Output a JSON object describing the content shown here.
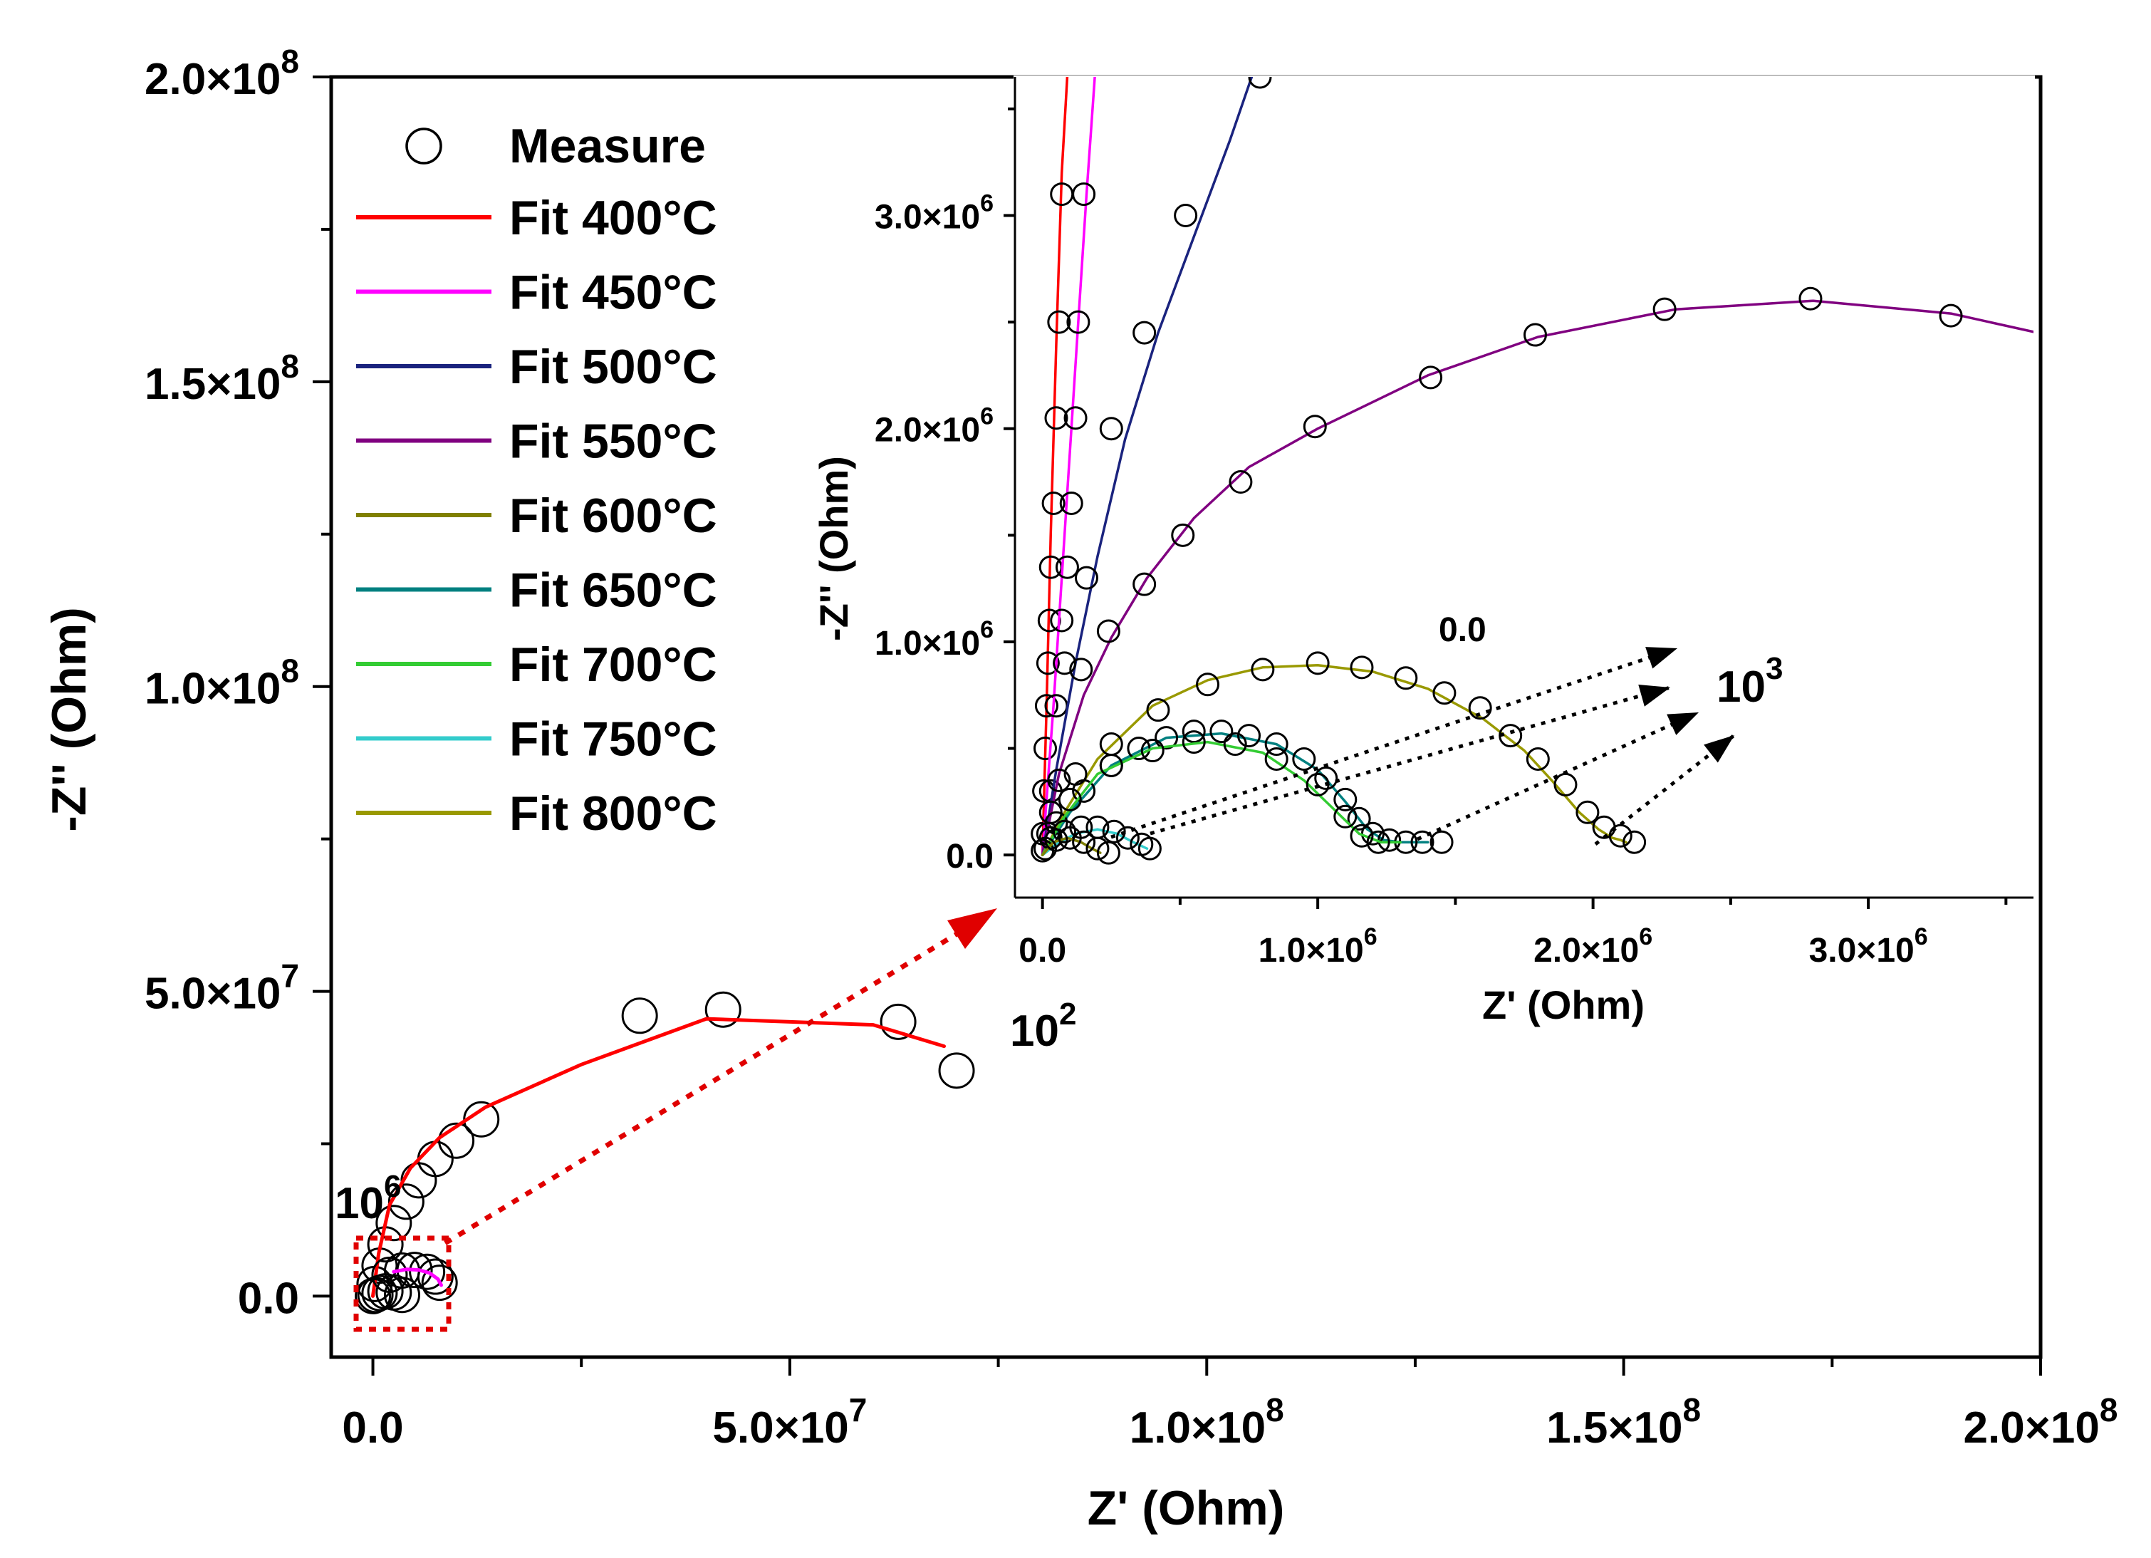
{
  "chart_data": [
    {
      "type": "scatter",
      "name": "main",
      "xlabel": "Z' (Ohm)",
      "ylabel": "-Z'' (Ohm)",
      "xlim": [
        -5000000,
        200000000
      ],
      "ylim": [
        -10000000,
        200000000
      ],
      "xticks": [
        0,
        50000000,
        100000000,
        150000000,
        200000000
      ],
      "yticks": [
        0,
        50000000,
        100000000,
        150000000,
        200000000
      ],
      "xtick_labels": [
        {
          "m": "0.0",
          "e": ""
        },
        {
          "m": "5.0×10",
          "e": "7"
        },
        {
          "m": "1.0×10",
          "e": "8"
        },
        {
          "m": "1.5×10",
          "e": "8"
        },
        {
          "m": "2.0×10",
          "e": "8"
        }
      ],
      "ytick_labels": [
        {
          "m": "0.0",
          "e": ""
        },
        {
          "m": "5.0×10",
          "e": "7"
        },
        {
          "m": "1.0×10",
          "e": "8"
        },
        {
          "m": "1.5×10",
          "e": "8"
        },
        {
          "m": "2.0×10",
          "e": "8"
        }
      ],
      "legend": {
        "position": "top-left",
        "measure_label": "Measure",
        "entries": [
          {
            "label": "Fit 400°C",
            "color": "#ff0000"
          },
          {
            "label": "Fit 450°C",
            "color": "#ff00ff"
          },
          {
            "label": "Fit 500°C",
            "color": "#1a237e"
          },
          {
            "label": "Fit 550°C",
            "color": "#800080"
          },
          {
            "label": "Fit 600°C",
            "color": "#808000"
          },
          {
            "label": "Fit 650°C",
            "color": "#008080"
          },
          {
            "label": "Fit 700°C",
            "color": "#33cc33"
          },
          {
            "label": "Fit 750°C",
            "color": "#33cccc"
          },
          {
            "label": "Fit 800°C",
            "color": "#999900"
          }
        ]
      },
      "series": [
        {
          "name": "Measure 400°C",
          "kind": "measure",
          "x": [
            200000,
            800000,
            1500000,
            2500000,
            4000000,
            5500000,
            7500000,
            10000000,
            13000000,
            32000000,
            42000000,
            63000000,
            70000000
          ],
          "y": [
            2000000,
            5000000,
            8500000,
            12000000,
            15500000,
            19000000,
            22500000,
            25500000,
            29000000,
            46000000,
            47000000,
            45000000,
            37000000
          ]
        },
        {
          "name": "Fit 400°C",
          "kind": "fit",
          "color": "#ff0000",
          "x": [
            0,
            700000,
            2000000,
            4500000,
            8000000,
            13500000,
            25000000,
            40000000,
            60000000,
            68500000
          ],
          "y": [
            0,
            7000000,
            15000000,
            21000000,
            26000000,
            31000000,
            38000000,
            45500000,
            44500000,
            41000000
          ]
        },
        {
          "name": "Measure 450°C",
          "kind": "measure",
          "x": [
            2000000,
            3500000,
            5000000,
            6500000,
            7500000,
            8000000
          ],
          "y": [
            3500000,
            4200000,
            4300000,
            4000000,
            3200000,
            2200000
          ]
        },
        {
          "name": "Fit 450°C",
          "kind": "fit",
          "color": "#ff00ff",
          "x": [
            2500000,
            4000000,
            5500000,
            6800000,
            7800000,
            8200000
          ],
          "y": [
            4000000,
            4400000,
            4300000,
            3800000,
            2800000,
            1800000
          ]
        },
        {
          "name": "Measure low-impedance",
          "kind": "measure",
          "x": [
            0,
            300000,
            800000,
            1500000,
            2500000,
            3500000
          ],
          "y": [
            0,
            200000,
            500000,
            800000,
            600000,
            200000
          ]
        }
      ],
      "annotations": [
        {
          "text": "10",
          "sup": "6",
          "at": "low-frequency start"
        },
        {
          "text": "10",
          "sup": "2",
          "at": "high end of 400°C arc"
        }
      ]
    },
    {
      "type": "scatter",
      "name": "inset",
      "xlabel": "Z' (Ohm)",
      "ylabel": "-Z'' (Ohm)",
      "xlim": [
        -100000,
        3600000
      ],
      "ylim": [
        -200000,
        3650000
      ],
      "xticks": [
        0,
        1000000,
        2000000,
        3000000
      ],
      "yticks": [
        0,
        1000000,
        2000000,
        3000000
      ],
      "xtick_labels": [
        {
          "m": "0.0",
          "e": ""
        },
        {
          "m": "1.0×10",
          "e": "6"
        },
        {
          "m": "2.0×10",
          "e": "6"
        },
        {
          "m": "3.0×10",
          "e": "6"
        }
      ],
      "ytick_labels": [
        {
          "m": "0.0",
          "e": ""
        },
        {
          "m": "1.0×10",
          "e": "6"
        },
        {
          "m": "2.0×10",
          "e": "6"
        },
        {
          "m": "3.0×10",
          "e": "6"
        }
      ],
      "series": [
        {
          "name": "Fit 400°C",
          "kind": "fit",
          "color": "#ff0000",
          "x": [
            0,
            15000,
            30000,
            50000,
            70000,
            90000
          ],
          "y": [
            0,
            700000,
            1500000,
            2400000,
            3200000,
            3650000
          ]
        },
        {
          "name": "Measure 400°C",
          "kind": "measure",
          "x": [
            0,
            5000,
            10000,
            15000,
            20000,
            25000,
            30000,
            40000,
            50000,
            60000,
            70000
          ],
          "y": [
            100000,
            300000,
            500000,
            700000,
            900000,
            1100000,
            1350000,
            1650000,
            2050000,
            2500000,
            3100000
          ]
        },
        {
          "name": "Fit 450°C",
          "kind": "fit",
          "color": "#ff00ff",
          "x": [
            0,
            40000,
            80000,
            120000,
            160000,
            190000
          ],
          "y": [
            0,
            700000,
            1500000,
            2300000,
            3100000,
            3650000
          ]
        },
        {
          "name": "Measure 450°C",
          "kind": "measure",
          "x": [
            30000,
            50000,
            70000,
            90000,
            105000,
            120000,
            130000,
            150000
          ],
          "y": [
            300000,
            700000,
            1100000,
            1350000,
            1650000,
            2050000,
            2500000,
            3100000
          ]
        },
        {
          "name": "Fit 500°C",
          "kind": "fit",
          "color": "#1a237e",
          "x": [
            0,
            50000,
            120000,
            200000,
            300000,
            420000,
            550000,
            680000,
            760000
          ],
          "y": [
            0,
            400000,
            900000,
            1400000,
            1950000,
            2450000,
            2900000,
            3350000,
            3650000
          ]
        },
        {
          "name": "Measure 500°C",
          "kind": "measure",
          "x": [
            80000,
            160000,
            250000,
            370000,
            520000,
            790000
          ],
          "y": [
            900000,
            1300000,
            2000000,
            2450000,
            3000000,
            3650000
          ]
        },
        {
          "name": "Fit 550°C",
          "kind": "fit",
          "color": "#800080",
          "x": [
            0,
            60000,
            150000,
            250000,
            380000,
            550000,
            750000,
            1000000,
            1400000,
            1800000,
            2300000,
            2800000,
            3300000,
            3650000
          ],
          "y": [
            0,
            380000,
            750000,
            1020000,
            1300000,
            1580000,
            1820000,
            2000000,
            2250000,
            2430000,
            2560000,
            2600000,
            2540000,
            2440000
          ]
        },
        {
          "name": "Measure 550°C",
          "kind": "measure",
          "x": [
            20000,
            60000,
            140000,
            240000,
            370000,
            510000,
            720000,
            990000,
            1410000,
            1790000,
            2260000,
            2790000,
            3300000
          ],
          "y": [
            100000,
            350000,
            870000,
            1050000,
            1270000,
            1500000,
            1750000,
            2010000,
            2240000,
            2440000,
            2560000,
            2610000,
            2530000
          ]
        },
        {
          "name": "Fit 800°C",
          "kind": "fit",
          "color": "#999900",
          "x": [
            0,
            80000,
            200000,
            400000,
            600000,
            800000,
            1000000,
            1200000,
            1400000,
            1600000,
            1750000,
            1850000,
            1950000,
            2020000,
            2070000,
            2100000,
            2120000
          ],
          "y": [
            0,
            200000,
            450000,
            700000,
            820000,
            880000,
            890000,
            860000,
            780000,
            640000,
            490000,
            350000,
            200000,
            120000,
            80000,
            70000,
            60000
          ]
        },
        {
          "name": "Measure 800°C",
          "kind": "measure",
          "x": [
            30000,
            120000,
            250000,
            420000,
            600000,
            800000,
            1000000,
            1160000,
            1320000,
            1460000,
            1590000,
            1700000,
            1800000,
            1900000,
            1980000,
            2040000,
            2100000,
            2150000
          ],
          "y": [
            200000,
            380000,
            520000,
            680000,
            800000,
            870000,
            900000,
            880000,
            830000,
            760000,
            690000,
            560000,
            450000,
            330000,
            200000,
            130000,
            90000,
            60000
          ]
        },
        {
          "name": "Fit 650°C",
          "kind": "fit",
          "color": "#008080",
          "x": [
            0,
            100000,
            250000,
            450000,
            650000,
            850000,
            1000000,
            1100000,
            1180000,
            1240000,
            1300000,
            1400000
          ],
          "y": [
            0,
            200000,
            420000,
            550000,
            570000,
            520000,
            400000,
            250000,
            120000,
            70000,
            60000,
            60000
          ]
        },
        {
          "name": "Measure 650°C",
          "kind": "measure",
          "x": [
            50000,
            150000,
            250000,
            350000,
            450000,
            550000,
            650000,
            750000,
            850000,
            950000,
            1030000,
            1100000,
            1150000,
            1200000,
            1260000,
            1320000,
            1380000,
            1450000
          ],
          "y": [
            150000,
            300000,
            420000,
            500000,
            550000,
            580000,
            580000,
            560000,
            520000,
            450000,
            360000,
            260000,
            170000,
            100000,
            70000,
            60000,
            60000,
            60000
          ]
        },
        {
          "name": "Fit 700°C",
          "kind": "fit",
          "color": "#33cc33",
          "x": [
            0,
            80000,
            200000,
            400000,
            600000,
            800000,
            950000,
            1070000,
            1150000,
            1230000,
            1300000
          ],
          "y": [
            0,
            180000,
            380000,
            500000,
            530000,
            480000,
            350000,
            200000,
            100000,
            60000,
            60000
          ]
        },
        {
          "name": "Measure 700°C",
          "kind": "measure",
          "x": [
            100000,
            250000,
            400000,
            550000,
            700000,
            850000,
            1000000,
            1100000,
            1160000,
            1220000
          ],
          "y": [
            260000,
            420000,
            490000,
            530000,
            520000,
            450000,
            330000,
            180000,
            90000,
            60000
          ]
        },
        {
          "name": "Fit 750°C",
          "kind": "fit",
          "color": "#33cccc",
          "x": [
            0,
            50000,
            120000,
            200000,
            270000,
            330000,
            380000
          ],
          "y": [
            0,
            50000,
            100000,
            120000,
            100000,
            60000,
            30000
          ]
        },
        {
          "name": "Measure 750°C",
          "kind": "measure",
          "x": [
            0,
            30000,
            80000,
            140000,
            200000,
            260000,
            310000,
            360000,
            390000
          ],
          "y": [
            20000,
            80000,
            110000,
            130000,
            130000,
            110000,
            80000,
            50000,
            30000
          ]
        },
        {
          "name": "Fit 600°C",
          "kind": "fit",
          "color": "#808000",
          "x": [
            0,
            40000,
            90000,
            140000,
            180000,
            210000
          ],
          "y": [
            0,
            60000,
            80000,
            60000,
            30000,
            10000
          ]
        },
        {
          "name": "Measure 600°C",
          "kind": "measure",
          "x": [
            10000,
            50000,
            100000,
            150000,
            200000,
            240000
          ],
          "y": [
            30000,
            70000,
            80000,
            60000,
            30000,
            10000
          ]
        }
      ],
      "annotations": [
        {
          "text": "10",
          "sup": "3",
          "at": "high-frequency end of arcs"
        },
        {
          "text": "0.0",
          "sup": "",
          "at": "small label above 800°C arc"
        }
      ]
    }
  ]
}
